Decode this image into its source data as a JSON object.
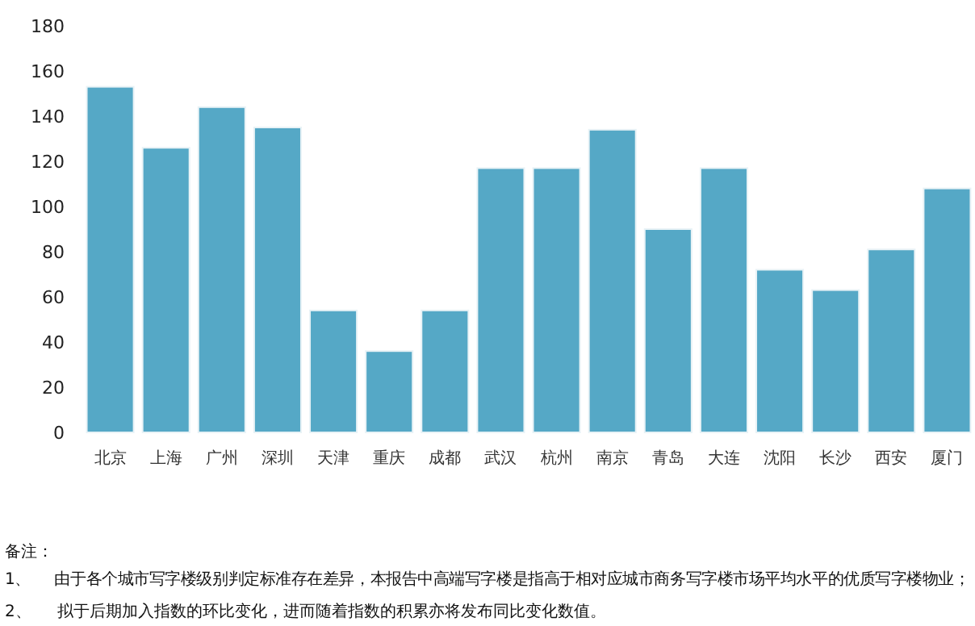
{
  "chart_data": {
    "type": "bar",
    "categories": [
      "北京",
      "上海",
      "广州",
      "深圳",
      "天津",
      "重庆",
      "成都",
      "武汉",
      "杭州",
      "南京",
      "青岛",
      "大连",
      "沈阳",
      "长沙",
      "西安",
      "厦门"
    ],
    "values": [
      153,
      126,
      144,
      135,
      54,
      36,
      54,
      117,
      117,
      134,
      90,
      117,
      72,
      63,
      81,
      108
    ],
    "color": "#55a8c6",
    "ylim": [
      0,
      180
    ],
    "yticks": [
      0,
      20,
      40,
      60,
      80,
      100,
      120,
      140,
      160,
      180
    ],
    "annotations": [
      "备注：",
      "1、     由于各个城市写字楼级别判定标准存在差异，本报告中高端写字楼是指高于相对应城市商务写字楼市场平均水平的优质写字楼物业；",
      "2、     拟于后期加入指数的环比变化，进而随着指数的积累亦将发布同比变化数值。"
    ]
  }
}
